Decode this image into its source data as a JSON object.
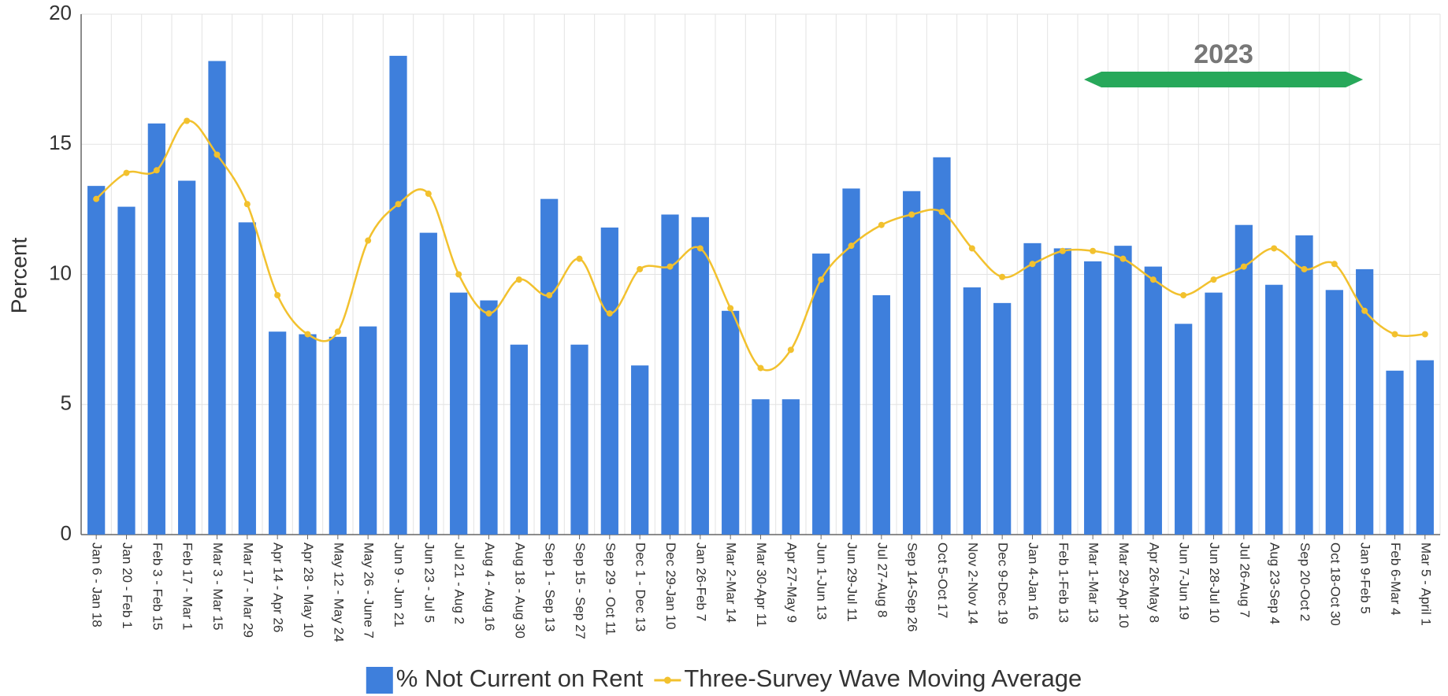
{
  "chart_data": {
    "type": "bar",
    "y_label": "Percent",
    "annotation": "2023",
    "categories": [
      "Jan 6 - Jan 18",
      "Jan 20 - Feb 1",
      "Feb 3 - Feb 15",
      "Feb 17 - Mar 1",
      "Mar 3 - Mar 15",
      "Mar 17 - Mar 29",
      "Apr 14 - Apr 26",
      "Apr 28 - May 10",
      "May 12 - May 24",
      "May 26 - June 7",
      "Jun 9 - Jun 21",
      "Jun 23 - Jul 5",
      "Jul 21 - Aug 2",
      "Aug 4 - Aug 16",
      "Aug 18 - Aug 30",
      "Sep 1 - Sep 13",
      "Sep 15 - Sep 27",
      "Sep 29 - Oct 11",
      "Dec 1 - Dec 13",
      "Dec 29-Jan 10",
      "Jan 26-Feb 7",
      "Mar 2-Mar 14",
      "Mar 30-Apr 11",
      "Apr 27-May 9",
      "Jun 1-Jun 13",
      "Jun 29-Jul 11",
      "Jul 27-Aug 8",
      "Sep 14-Sep 26",
      "Oct 5-Oct 17",
      "Nov 2-Nov 14",
      "Dec 9-Dec 19",
      "Jan 4-Jan 16",
      "Feb 1-Feb 13",
      "Mar 1-Mar 13",
      "Mar 29-Apr 10",
      "Apr 26-May 8",
      "Jun 7-Jun 19",
      "Jun 28-Jul 10",
      "Jul 26-Aug 7",
      "Aug 23-Sep 4",
      "Sep 20-Oct 2",
      "Oct 18-Oct 30",
      "Jan 9-Feb 5",
      "Feb 6-Mar 4",
      "Mar 5 - April 1"
    ],
    "series": [
      {
        "name": "% Not Current on Rent",
        "type": "bar",
        "color": "#3e7fdc",
        "values": [
          13.4,
          12.6,
          15.8,
          13.6,
          18.2,
          12.0,
          7.8,
          7.7,
          7.6,
          8.0,
          18.4,
          11.6,
          9.3,
          9.0,
          7.3,
          12.9,
          7.3,
          11.8,
          6.5,
          12.3,
          12.2,
          8.6,
          5.2,
          5.2,
          10.8,
          13.3,
          9.2,
          13.2,
          14.5,
          9.5,
          8.9,
          11.2,
          11.0,
          10.5,
          11.1,
          10.3,
          8.1,
          9.3,
          11.9,
          9.6,
          11.5,
          9.4,
          10.2,
          6.3,
          6.7
        ]
      },
      {
        "name": "Three-Survey Wave Moving Average",
        "type": "line",
        "color": "#f2c12e",
        "values": [
          12.9,
          13.9,
          14.0,
          15.9,
          14.6,
          12.7,
          9.2,
          7.7,
          7.8,
          11.3,
          12.7,
          13.1,
          10.0,
          8.5,
          9.8,
          9.2,
          10.6,
          8.5,
          10.2,
          10.3,
          11.0,
          8.7,
          6.4,
          7.1,
          9.8,
          11.1,
          11.9,
          12.3,
          12.4,
          11.0,
          9.9,
          10.4,
          10.9,
          10.9,
          10.6,
          9.8,
          9.2,
          9.8,
          10.3,
          11.0,
          10.2,
          10.4,
          8.6,
          7.7,
          7.7
        ]
      }
    ],
    "annotation_color": "#27a85a",
    "ylim": [
      0,
      20
    ],
    "yticks": [
      0,
      5,
      10,
      15,
      20
    ],
    "grid": true
  }
}
